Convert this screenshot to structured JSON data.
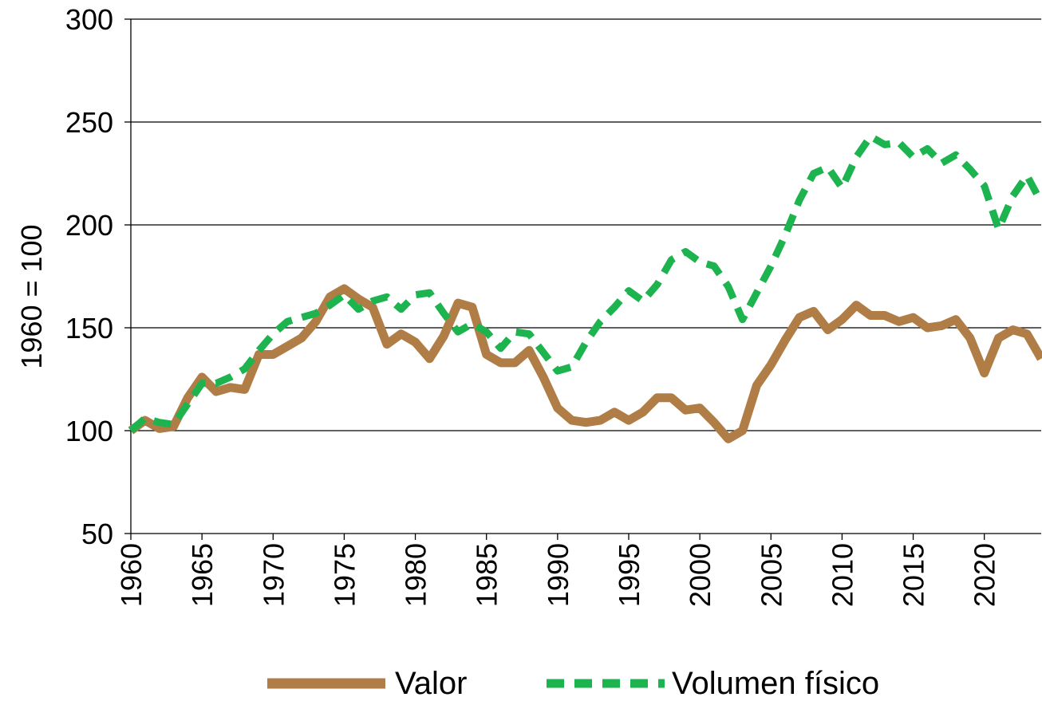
{
  "chart_data": {
    "type": "line",
    "y_label": "1960 = 100",
    "x": [
      1960,
      1961,
      1962,
      1963,
      1964,
      1965,
      1966,
      1967,
      1968,
      1969,
      1970,
      1971,
      1972,
      1973,
      1974,
      1975,
      1976,
      1977,
      1978,
      1979,
      1980,
      1981,
      1982,
      1983,
      1984,
      1985,
      1986,
      1987,
      1988,
      1989,
      1990,
      1991,
      1992,
      1993,
      1994,
      1995,
      1996,
      1997,
      1998,
      1999,
      2000,
      2001,
      2002,
      2003,
      2004,
      2005,
      2006,
      2007,
      2008,
      2009,
      2010,
      2011,
      2012,
      2013,
      2014,
      2015,
      2016,
      2017,
      2018,
      2019,
      2020,
      2021,
      2022,
      2023,
      2024
    ],
    "series": [
      {
        "name": "Valor",
        "color": "#b07d46",
        "dash": false,
        "values": [
          100,
          105,
          101,
          102,
          116,
          126,
          119,
          121,
          120,
          137,
          137,
          141,
          145,
          153,
          165,
          169,
          164,
          160,
          142,
          147,
          143,
          135,
          146,
          162,
          160,
          137,
          133,
          133,
          139,
          126,
          111,
          105,
          104,
          105,
          109,
          105,
          109,
          116,
          116,
          110,
          111,
          104,
          96,
          100,
          122,
          132,
          144,
          155,
          158,
          149,
          154,
          161,
          156,
          156,
          153,
          155,
          150,
          151,
          154,
          145,
          128,
          145,
          149,
          147,
          135
        ]
      },
      {
        "name": "Volumen físico",
        "color": "#1db34f",
        "dash": true,
        "values": [
          100,
          106,
          104,
          103,
          113,
          123,
          123,
          126,
          130,
          139,
          147,
          153,
          155,
          157,
          161,
          166,
          159,
          163,
          165,
          159,
          166,
          167,
          157,
          148,
          152,
          148,
          140,
          148,
          147,
          138,
          129,
          131,
          143,
          153,
          160,
          168,
          163,
          171,
          183,
          187,
          182,
          180,
          170,
          154,
          167,
          180,
          195,
          212,
          225,
          228,
          218,
          233,
          243,
          239,
          240,
          233,
          237,
          230,
          234,
          227,
          219,
          198,
          214,
          224,
          211
        ]
      }
    ],
    "xlim": [
      1960,
      2024
    ],
    "xticks": [
      1960,
      1965,
      1970,
      1975,
      1980,
      1985,
      1990,
      1995,
      2000,
      2005,
      2010,
      2015,
      2020
    ],
    "ylim": [
      50,
      300
    ],
    "yticks": [
      50,
      100,
      150,
      200,
      250,
      300
    ],
    "grid": true
  }
}
